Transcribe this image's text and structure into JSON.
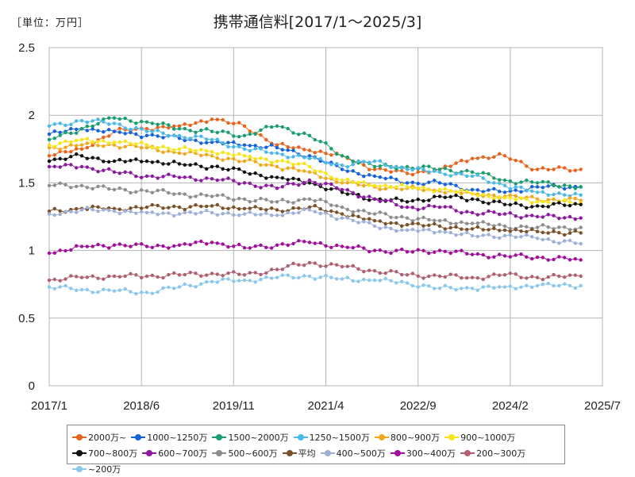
{
  "header": {
    "unit": "［単位：万円］",
    "title": "携帯通信料[2017/1～2025/3]"
  },
  "chart_data": {
    "type": "line",
    "title": "携帯通信料[2017/1～2025/3]",
    "unit": "［単位：万円］",
    "x_range": [
      "2017/1",
      "2025/7"
    ],
    "x_ticks": [
      "2017/1",
      "2018/6",
      "2019/11",
      "2021/4",
      "2022/9",
      "2024/2",
      "2025/7"
    ],
    "ylim": [
      0,
      2.5
    ],
    "y_ticks": [
      "0",
      "0.5",
      "1",
      "1.5",
      "2",
      "2.5"
    ],
    "grid": true,
    "legend_position": "bottom",
    "series": [
      {
        "name": "2000万~",
        "color": "#e8641e",
        "points": [
          [
            "2017/1",
            1.7
          ],
          [
            "2017/7",
            1.75
          ],
          [
            "2018/1",
            1.88
          ],
          [
            "2018/7",
            1.9
          ],
          [
            "2019/1",
            1.92
          ],
          [
            "2019/7",
            1.97
          ],
          [
            "2020/1",
            1.92
          ],
          [
            "2020/7",
            1.78
          ],
          [
            "2021/1",
            1.74
          ],
          [
            "2021/7",
            1.7
          ],
          [
            "2022/1",
            1.6
          ],
          [
            "2022/7",
            1.57
          ],
          [
            "2023/1",
            1.6
          ],
          [
            "2023/7",
            1.68
          ],
          [
            "2024/1",
            1.7
          ],
          [
            "2024/7",
            1.6
          ],
          [
            "2025/3",
            1.6
          ]
        ]
      },
      {
        "name": "1000~1250万",
        "color": "#1662d8",
        "points": [
          [
            "2017/1",
            1.86
          ],
          [
            "2017/7",
            1.9
          ],
          [
            "2018/1",
            1.88
          ],
          [
            "2018/7",
            1.85
          ],
          [
            "2019/1",
            1.83
          ],
          [
            "2019/7",
            1.8
          ],
          [
            "2020/1",
            1.78
          ],
          [
            "2020/7",
            1.76
          ],
          [
            "2021/1",
            1.7
          ],
          [
            "2021/7",
            1.6
          ],
          [
            "2022/1",
            1.55
          ],
          [
            "2022/7",
            1.5
          ],
          [
            "2023/1",
            1.5
          ],
          [
            "2023/7",
            1.45
          ],
          [
            "2024/1",
            1.43
          ],
          [
            "2024/7",
            1.47
          ],
          [
            "2025/3",
            1.47
          ]
        ]
      },
      {
        "name": "1500~2000万",
        "color": "#1a9e6e",
        "points": [
          [
            "2017/1",
            1.82
          ],
          [
            "2017/7",
            1.9
          ],
          [
            "2018/1",
            1.98
          ],
          [
            "2018/7",
            1.95
          ],
          [
            "2019/1",
            1.9
          ],
          [
            "2019/7",
            1.88
          ],
          [
            "2020/1",
            1.85
          ],
          [
            "2020/7",
            1.92
          ],
          [
            "2021/1",
            1.85
          ],
          [
            "2021/7",
            1.7
          ],
          [
            "2022/1",
            1.62
          ],
          [
            "2022/7",
            1.62
          ],
          [
            "2023/1",
            1.6
          ],
          [
            "2023/7",
            1.58
          ],
          [
            "2024/1",
            1.52
          ],
          [
            "2024/7",
            1.5
          ],
          [
            "2025/3",
            1.47
          ]
        ]
      },
      {
        "name": "1250~1500万",
        "color": "#4cb8e8",
        "points": [
          [
            "2017/1",
            1.92
          ],
          [
            "2017/7",
            1.96
          ],
          [
            "2018/1",
            1.94
          ],
          [
            "2018/7",
            1.88
          ],
          [
            "2019/1",
            1.85
          ],
          [
            "2019/7",
            1.82
          ],
          [
            "2020/1",
            1.75
          ],
          [
            "2020/7",
            1.72
          ],
          [
            "2021/1",
            1.68
          ],
          [
            "2021/7",
            1.63
          ],
          [
            "2022/1",
            1.66
          ],
          [
            "2022/7",
            1.6
          ],
          [
            "2023/1",
            1.58
          ],
          [
            "2023/7",
            1.55
          ],
          [
            "2024/1",
            1.48
          ],
          [
            "2024/7",
            1.43
          ],
          [
            "2025/3",
            1.41
          ]
        ]
      },
      {
        "name": "800~900万",
        "color": "#f0a81c",
        "points": [
          [
            "2017/1",
            1.76
          ],
          [
            "2017/7",
            1.78
          ],
          [
            "2018/1",
            1.78
          ],
          [
            "2018/7",
            1.76
          ],
          [
            "2019/1",
            1.72
          ],
          [
            "2019/7",
            1.7
          ],
          [
            "2020/1",
            1.66
          ],
          [
            "2020/7",
            1.62
          ],
          [
            "2021/1",
            1.58
          ],
          [
            "2021/7",
            1.5
          ],
          [
            "2022/1",
            1.47
          ],
          [
            "2022/7",
            1.46
          ],
          [
            "2023/1",
            1.44
          ],
          [
            "2023/7",
            1.42
          ],
          [
            "2024/1",
            1.4
          ],
          [
            "2024/7",
            1.38
          ],
          [
            "2025/3",
            1.37
          ]
        ]
      },
      {
        "name": "900~1000万",
        "color": "#f7e41a",
        "points": [
          [
            "2017/1",
            1.78
          ],
          [
            "2017/7",
            1.82
          ],
          [
            "2018/1",
            1.8
          ],
          [
            "2018/7",
            1.78
          ],
          [
            "2019/1",
            1.75
          ],
          [
            "2019/7",
            1.73
          ],
          [
            "2020/1",
            1.7
          ],
          [
            "2020/7",
            1.66
          ],
          [
            "2021/1",
            1.62
          ],
          [
            "2021/7",
            1.52
          ],
          [
            "2022/1",
            1.48
          ],
          [
            "2022/7",
            1.47
          ],
          [
            "2023/1",
            1.45
          ],
          [
            "2023/7",
            1.42
          ],
          [
            "2024/1",
            1.39
          ],
          [
            "2024/7",
            1.36
          ],
          [
            "2025/3",
            1.35
          ]
        ]
      },
      {
        "name": "700~800万",
        "color": "#111111",
        "points": [
          [
            "2017/1",
            1.66
          ],
          [
            "2017/7",
            1.7
          ],
          [
            "2018/1",
            1.66
          ],
          [
            "2018/7",
            1.66
          ],
          [
            "2019/1",
            1.64
          ],
          [
            "2019/7",
            1.62
          ],
          [
            "2020/1",
            1.58
          ],
          [
            "2020/7",
            1.54
          ],
          [
            "2021/1",
            1.5
          ],
          [
            "2021/7",
            1.43
          ],
          [
            "2022/1",
            1.38
          ],
          [
            "2022/7",
            1.36
          ],
          [
            "2023/1",
            1.4
          ],
          [
            "2023/7",
            1.38
          ],
          [
            "2024/1",
            1.34
          ],
          [
            "2024/7",
            1.33
          ],
          [
            "2025/3",
            1.34
          ]
        ]
      },
      {
        "name": "600~700万",
        "color": "#8c1aa0",
        "points": [
          [
            "2017/1",
            1.62
          ],
          [
            "2017/7",
            1.62
          ],
          [
            "2018/1",
            1.58
          ],
          [
            "2018/7",
            1.55
          ],
          [
            "2019/1",
            1.54
          ],
          [
            "2019/7",
            1.53
          ],
          [
            "2020/1",
            1.5
          ],
          [
            "2020/7",
            1.46
          ],
          [
            "2021/1",
            1.52
          ],
          [
            "2021/7",
            1.45
          ],
          [
            "2022/1",
            1.38
          ],
          [
            "2022/7",
            1.32
          ],
          [
            "2023/1",
            1.32
          ],
          [
            "2023/7",
            1.28
          ],
          [
            "2024/1",
            1.27
          ],
          [
            "2024/7",
            1.25
          ],
          [
            "2025/3",
            1.24
          ]
        ]
      },
      {
        "name": "500~600万",
        "color": "#8e8e8e",
        "points": [
          [
            "2017/1",
            1.48
          ],
          [
            "2017/7",
            1.48
          ],
          [
            "2018/1",
            1.45
          ],
          [
            "2018/7",
            1.44
          ],
          [
            "2019/1",
            1.42
          ],
          [
            "2019/7",
            1.4
          ],
          [
            "2020/1",
            1.38
          ],
          [
            "2020/7",
            1.36
          ],
          [
            "2021/1",
            1.38
          ],
          [
            "2021/7",
            1.32
          ],
          [
            "2022/1",
            1.27
          ],
          [
            "2022/7",
            1.24
          ],
          [
            "2023/1",
            1.22
          ],
          [
            "2023/7",
            1.2
          ],
          [
            "2024/1",
            1.18
          ],
          [
            "2024/7",
            1.17
          ],
          [
            "2025/3",
            1.17
          ]
        ]
      },
      {
        "name": "平均",
        "color": "#7a5128",
        "points": [
          [
            "2017/1",
            1.29
          ],
          [
            "2017/7",
            1.31
          ],
          [
            "2018/1",
            1.31
          ],
          [
            "2018/7",
            1.32
          ],
          [
            "2019/1",
            1.32
          ],
          [
            "2019/7",
            1.33
          ],
          [
            "2020/1",
            1.31
          ],
          [
            "2020/7",
            1.3
          ],
          [
            "2021/1",
            1.32
          ],
          [
            "2021/7",
            1.27
          ],
          [
            "2022/1",
            1.22
          ],
          [
            "2022/7",
            1.19
          ],
          [
            "2023/1",
            1.18
          ],
          [
            "2023/7",
            1.16
          ],
          [
            "2024/1",
            1.15
          ],
          [
            "2024/7",
            1.14
          ],
          [
            "2025/3",
            1.13
          ]
        ]
      },
      {
        "name": "400~500万",
        "color": "#9fb0d8",
        "points": [
          [
            "2017/1",
            1.27
          ],
          [
            "2017/7",
            1.3
          ],
          [
            "2018/1",
            1.29
          ],
          [
            "2018/7",
            1.28
          ],
          [
            "2019/1",
            1.27
          ],
          [
            "2019/7",
            1.28
          ],
          [
            "2020/1",
            1.27
          ],
          [
            "2020/7",
            1.26
          ],
          [
            "2021/1",
            1.3
          ],
          [
            "2021/7",
            1.24
          ],
          [
            "2022/1",
            1.18
          ],
          [
            "2022/7",
            1.15
          ],
          [
            "2023/1",
            1.14
          ],
          [
            "2023/7",
            1.11
          ],
          [
            "2024/1",
            1.11
          ],
          [
            "2024/7",
            1.09
          ],
          [
            "2025/3",
            1.05
          ]
        ]
      },
      {
        "name": "300~400万",
        "color": "#a0109a",
        "points": [
          [
            "2017/1",
            0.98
          ],
          [
            "2017/7",
            1.03
          ],
          [
            "2018/1",
            1.04
          ],
          [
            "2018/7",
            1.03
          ],
          [
            "2019/1",
            1.04
          ],
          [
            "2019/7",
            1.06
          ],
          [
            "2020/1",
            1.02
          ],
          [
            "2020/7",
            1.04
          ],
          [
            "2021/1",
            1.06
          ],
          [
            "2021/7",
            1.03
          ],
          [
            "2022/1",
            1.0
          ],
          [
            "2022/7",
            0.99
          ],
          [
            "2023/1",
            1.0
          ],
          [
            "2023/7",
            0.97
          ],
          [
            "2024/1",
            0.96
          ],
          [
            "2024/7",
            0.95
          ],
          [
            "2025/3",
            0.93
          ]
        ]
      },
      {
        "name": "200~300万",
        "color": "#b06070",
        "points": [
          [
            "2017/1",
            0.78
          ],
          [
            "2017/7",
            0.8
          ],
          [
            "2018/1",
            0.81
          ],
          [
            "2018/7",
            0.81
          ],
          [
            "2019/1",
            0.82
          ],
          [
            "2019/7",
            0.83
          ],
          [
            "2020/1",
            0.82
          ],
          [
            "2020/7",
            0.86
          ],
          [
            "2021/1",
            0.91
          ],
          [
            "2021/7",
            0.88
          ],
          [
            "2022/1",
            0.85
          ],
          [
            "2022/7",
            0.82
          ],
          [
            "2023/1",
            0.81
          ],
          [
            "2023/7",
            0.8
          ],
          [
            "2024/1",
            0.82
          ],
          [
            "2024/7",
            0.8
          ],
          [
            "2025/3",
            0.81
          ]
        ]
      },
      {
        "name": "~200万",
        "color": "#8cc8ec",
        "points": [
          [
            "2017/1",
            0.73
          ],
          [
            "2017/7",
            0.71
          ],
          [
            "2018/1",
            0.7
          ],
          [
            "2018/7",
            0.69
          ],
          [
            "2019/1",
            0.73
          ],
          [
            "2019/7",
            0.77
          ],
          [
            "2020/1",
            0.78
          ],
          [
            "2020/7",
            0.8
          ],
          [
            "2021/1",
            0.81
          ],
          [
            "2021/7",
            0.79
          ],
          [
            "2022/1",
            0.78
          ],
          [
            "2022/7",
            0.76
          ],
          [
            "2023/1",
            0.72
          ],
          [
            "2023/7",
            0.72
          ],
          [
            "2024/1",
            0.73
          ],
          [
            "2024/7",
            0.74
          ],
          [
            "2025/3",
            0.74
          ]
        ]
      }
    ]
  }
}
